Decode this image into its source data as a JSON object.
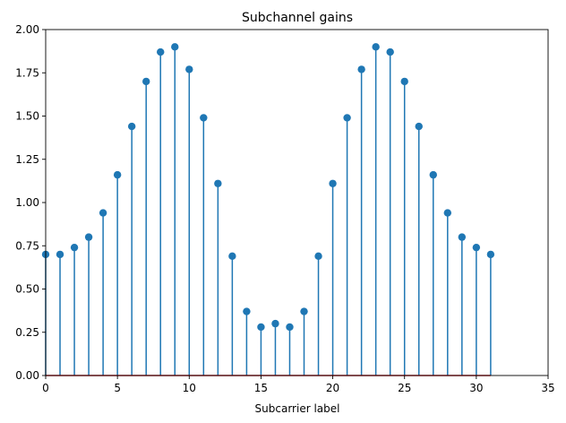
{
  "chart_data": {
    "type": "stem",
    "title": "Subchannel gains",
    "xlabel": "Subcarrier label",
    "ylabel": "",
    "xlim": [
      0,
      35
    ],
    "ylim": [
      0,
      2.0
    ],
    "xticks": [
      "0",
      "5",
      "10",
      "15",
      "20",
      "25",
      "30",
      "35"
    ],
    "yticks": [
      "0.00",
      "0.25",
      "0.50",
      "0.75",
      "1.00",
      "1.25",
      "1.50",
      "1.75",
      "2.00"
    ],
    "grid": false,
    "x": [
      0,
      1,
      2,
      3,
      4,
      5,
      6,
      7,
      8,
      9,
      10,
      11,
      12,
      13,
      14,
      15,
      16,
      17,
      18,
      19,
      20,
      21,
      22,
      23,
      24,
      25,
      26,
      27,
      28,
      29,
      30,
      31
    ],
    "values": [
      0.7,
      0.7,
      0.74,
      0.8,
      0.94,
      1.16,
      1.44,
      1.7,
      1.87,
      1.9,
      1.77,
      1.49,
      1.11,
      0.69,
      0.37,
      0.28,
      0.3,
      0.28,
      0.37,
      0.69,
      1.11,
      1.49,
      1.77,
      1.9,
      1.87,
      1.7,
      1.44,
      1.16,
      0.94,
      0.8,
      0.74,
      0.7
    ],
    "colors": {
      "stem": "#1f77b4",
      "marker": "#1f77b4",
      "baseline": "#d62728"
    }
  }
}
